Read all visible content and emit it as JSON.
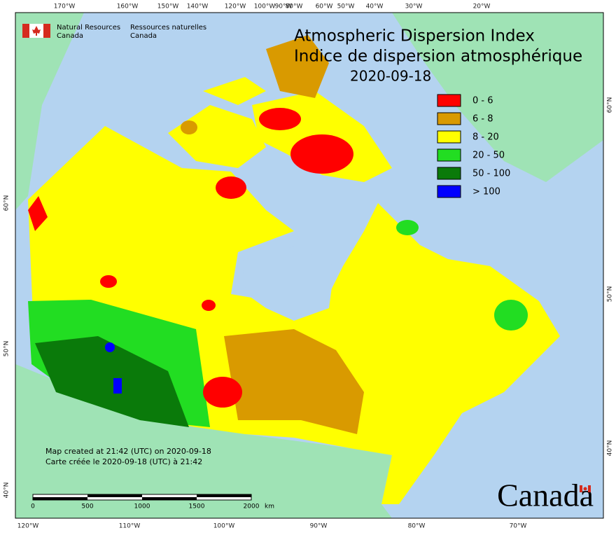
{
  "header": {
    "agency_en": "Natural Resources",
    "agency_en_2": "Canada",
    "agency_fr": "Ressources naturelles",
    "agency_fr_2": "Canada"
  },
  "title": {
    "en": "Atmospheric Dispersion Index",
    "fr": "Indice de dispersion atmosphérique",
    "date": "2020-09-18"
  },
  "legend": [
    {
      "label": "0 - 6",
      "color": "#ff0000"
    },
    {
      "label": "6 - 8",
      "color": "#d99a00"
    },
    {
      "label": "8 - 20",
      "color": "#ffff00"
    },
    {
      "label": "20 - 50",
      "color": "#22dd22"
    },
    {
      "label": "50 - 100",
      "color": "#0a7a0a"
    },
    {
      "label": "> 100",
      "color": "#0000ff"
    }
  ],
  "top_labels": [
    "170°W",
    "160°W",
    "150°W",
    "140°W",
    "120°W",
    "100°W",
    "90°W",
    "80°W",
    "60°W",
    "50°W",
    "40°W",
    "30°W",
    "20°W"
  ],
  "bottom_labels": [
    "120°W",
    "110°W",
    "100°W",
    "90°W",
    "80°W",
    "70°W"
  ],
  "left_labels": [
    "60°N",
    "50°N",
    "40°N"
  ],
  "right_labels": [
    "60°N",
    "50°N",
    "40°N"
  ],
  "notes": [
    "Map created at 21:42 (UTC) on 2020-09-18",
    "Carte créée le 2020-09-18 (UTC) à 21:42"
  ],
  "scale": {
    "labels": [
      "0",
      "500",
      "1000",
      "1500",
      "2000"
    ],
    "unit": "km"
  },
  "wordmark": "Canada"
}
